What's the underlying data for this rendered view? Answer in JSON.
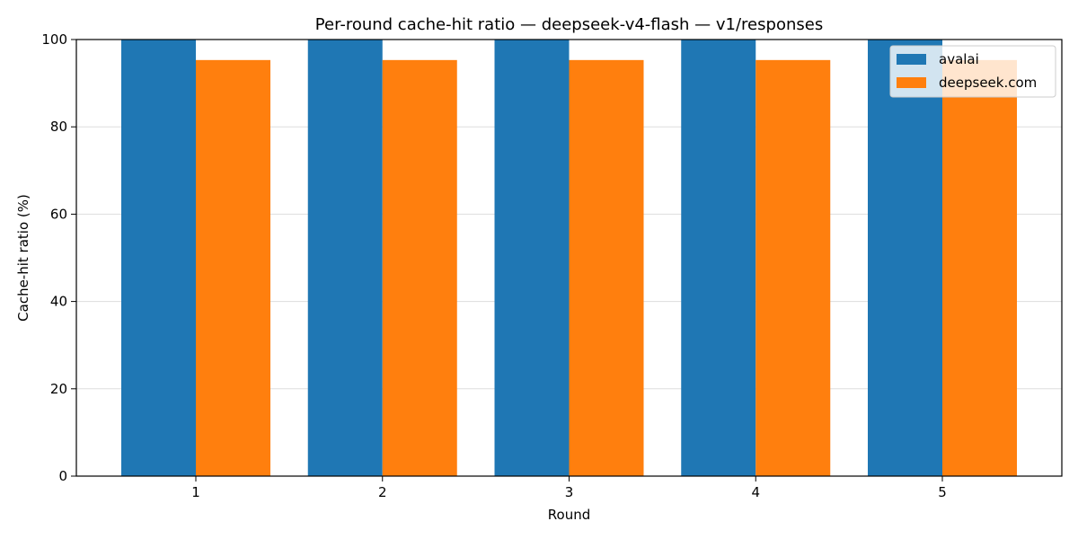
{
  "chart_data": {
    "type": "bar",
    "title": "Per-round cache-hit ratio — deepseek-v4-flash — v1/responses",
    "xlabel": "Round",
    "ylabel": "Cache-hit ratio (%)",
    "categories": [
      "1",
      "2",
      "3",
      "4",
      "5"
    ],
    "series": [
      {
        "name": "avalai",
        "color": "#1f77b4",
        "values": [
          100,
          100,
          100,
          100,
          100
        ]
      },
      {
        "name": "deepseek.com",
        "color": "#ff7f0e",
        "values": [
          95.3,
          95.3,
          95.3,
          95.3,
          95.3
        ]
      }
    ],
    "ylim": [
      0,
      100
    ],
    "yticks": [
      0,
      20,
      40,
      60,
      80,
      100
    ],
    "grid": "y",
    "legend_position": "top-right"
  }
}
